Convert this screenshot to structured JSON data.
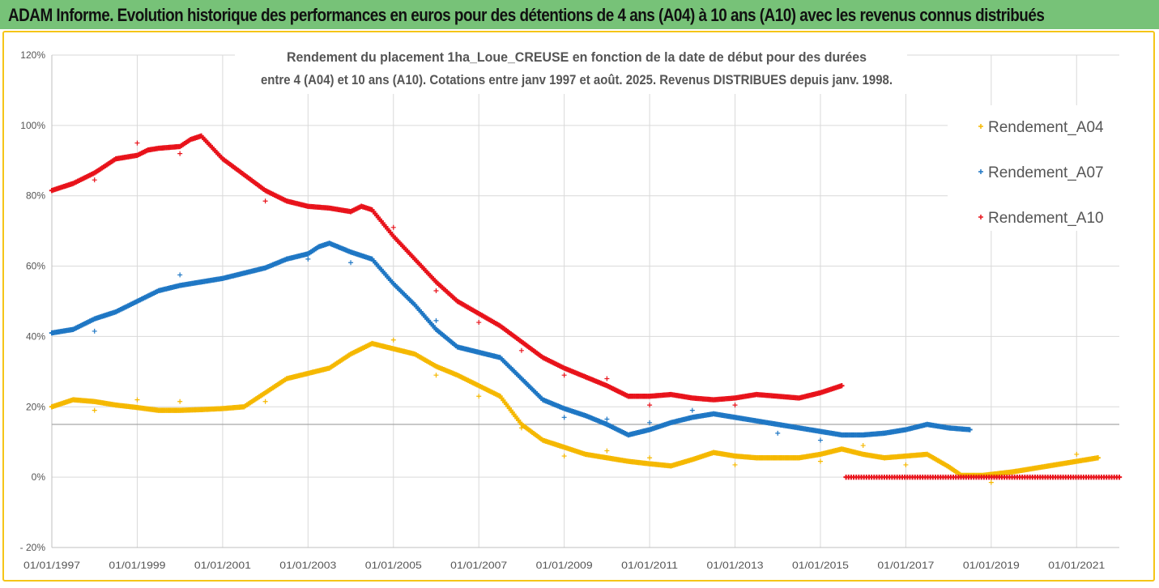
{
  "banner": {
    "title": "ADAM Informe. Evolution historique des performances en euros pour des détentions de 4 ans (A04) à 10 ans (A10) avec les revenus connus distribués",
    "color": "#77c278"
  },
  "chart_data": {
    "type": "scatter",
    "title_line1": "Rendement du placement 1ha_Loue_CREUSE en fonction de la date de début pour des durées",
    "title_line2": "entre 4 (A04) et 10 ans (A10). Cotations entre janv 1997 et août. 2025. Revenus DISTRIBUES depuis janv. 1998.",
    "y_ticks": [
      "120%",
      "100%",
      "80%",
      "60%",
      "40%",
      "20%",
      "0%",
      "- 20%"
    ],
    "y_tick_values": [
      120,
      100,
      80,
      60,
      40,
      20,
      0,
      -20
    ],
    "x_ticks": [
      "01/01/1997",
      "01/01/1999",
      "01/01/2001",
      "01/01/2003",
      "01/01/2005",
      "01/01/2007",
      "01/01/2009",
      "01/01/2011",
      "01/01/2013",
      "01/01/2015",
      "01/01/2017",
      "01/01/2019",
      "01/01/2021"
    ],
    "x_tick_years": [
      1997,
      1999,
      2001,
      2003,
      2005,
      2007,
      2009,
      2011,
      2013,
      2015,
      2017,
      2019,
      2021
    ],
    "xlim": [
      1997,
      2022
    ],
    "ylim": [
      -20,
      120
    ],
    "reference_line_y": 15,
    "legend_position": "right",
    "grid": true,
    "series": [
      {
        "name": "Rendement_A04",
        "color": "#f5b800",
        "points": [
          [
            1997.0,
            20
          ],
          [
            1997.25,
            21
          ],
          [
            1997.5,
            22
          ],
          [
            1998,
            21.5
          ],
          [
            1998.5,
            20.5
          ],
          [
            1999,
            19.8
          ],
          [
            1999.5,
            19
          ],
          [
            2000,
            19
          ],
          [
            2000.5,
            19.2
          ],
          [
            2001,
            19.5
          ],
          [
            2001.5,
            20
          ],
          [
            2002,
            24
          ],
          [
            2002.5,
            28
          ],
          [
            2003,
            29.5
          ],
          [
            2003.5,
            31
          ],
          [
            2004,
            35
          ],
          [
            2004.5,
            38
          ],
          [
            2005,
            36.5
          ],
          [
            2005.5,
            35
          ],
          [
            2006,
            31.5
          ],
          [
            2006.5,
            29
          ],
          [
            2007,
            26
          ],
          [
            2007.5,
            23
          ],
          [
            2008,
            15
          ],
          [
            2008.5,
            10.5
          ],
          [
            2009,
            8.5
          ],
          [
            2009.5,
            6.5
          ],
          [
            2010,
            5.5
          ],
          [
            2010.5,
            4.5
          ],
          [
            2011,
            3.8
          ],
          [
            2011.5,
            3.2
          ],
          [
            2012,
            5
          ],
          [
            2012.5,
            7
          ],
          [
            2013,
            6
          ],
          [
            2013.5,
            5.5
          ],
          [
            2014,
            5.5
          ],
          [
            2014.5,
            5.5
          ],
          [
            2015,
            6.5
          ],
          [
            2015.5,
            8
          ],
          [
            2016,
            6.5
          ],
          [
            2016.5,
            5.5
          ],
          [
            2017,
            6
          ],
          [
            2017.5,
            6.5
          ],
          [
            2018,
            3
          ],
          [
            2018.3,
            0.5
          ],
          [
            2018.8,
            0.5
          ],
          [
            2019.5,
            1.5
          ],
          [
            2020,
            2.5
          ],
          [
            2020.5,
            3.5
          ],
          [
            2021,
            4.5
          ],
          [
            2021.5,
            5.5
          ]
        ],
        "outliers": [
          [
            1998,
            19
          ],
          [
            1999,
            22
          ],
          [
            2000,
            21.5
          ],
          [
            2002,
            21.5
          ],
          [
            2005,
            39
          ],
          [
            2006,
            29
          ],
          [
            2007,
            23
          ],
          [
            2008,
            14
          ],
          [
            2009,
            6
          ],
          [
            2010,
            7.5
          ],
          [
            2011,
            5.5
          ],
          [
            2013,
            3.5
          ],
          [
            2015,
            4.5
          ],
          [
            2016,
            9
          ],
          [
            2017,
            3.5
          ],
          [
            2019,
            -1.5
          ],
          [
            2021,
            6.5
          ]
        ]
      },
      {
        "name": "Rendement_A07",
        "color": "#1f77c4",
        "points": [
          [
            1997.0,
            41
          ],
          [
            1997.5,
            42
          ],
          [
            1998,
            45
          ],
          [
            1998.5,
            47
          ],
          [
            1999,
            50
          ],
          [
            1999.5,
            53
          ],
          [
            2000,
            54.5
          ],
          [
            2000.5,
            55.5
          ],
          [
            2001,
            56.5
          ],
          [
            2001.5,
            58
          ],
          [
            2002,
            59.5
          ],
          [
            2002.5,
            62
          ],
          [
            2003,
            63.5
          ],
          [
            2003.25,
            65.5
          ],
          [
            2003.5,
            66.5
          ],
          [
            2004,
            64
          ],
          [
            2004.5,
            62
          ],
          [
            2005,
            55
          ],
          [
            2005.5,
            49
          ],
          [
            2006,
            42
          ],
          [
            2006.5,
            37
          ],
          [
            2007,
            35.5
          ],
          [
            2007.5,
            34
          ],
          [
            2008,
            28
          ],
          [
            2008.5,
            22
          ],
          [
            2009,
            19.5
          ],
          [
            2009.5,
            17.5
          ],
          [
            2010,
            15
          ],
          [
            2010.5,
            12
          ],
          [
            2011,
            13.5
          ],
          [
            2011.5,
            15.5
          ],
          [
            2012,
            17
          ],
          [
            2012.5,
            18
          ],
          [
            2013,
            17
          ],
          [
            2013.5,
            16
          ],
          [
            2014,
            15
          ],
          [
            2014.5,
            14
          ],
          [
            2015,
            13
          ],
          [
            2015.5,
            12
          ],
          [
            2016,
            12
          ],
          [
            2016.5,
            12.5
          ],
          [
            2017,
            13.5
          ],
          [
            2017.5,
            15
          ],
          [
            2018,
            14
          ],
          [
            2018.5,
            13.5
          ]
        ],
        "outliers": [
          [
            1998,
            41.5
          ],
          [
            2000,
            57.5
          ],
          [
            2003,
            62
          ],
          [
            2004,
            61
          ],
          [
            2006,
            44.5
          ],
          [
            2009,
            17
          ],
          [
            2010,
            16.5
          ],
          [
            2011,
            15.5
          ],
          [
            2012,
            19
          ],
          [
            2014,
            12.5
          ],
          [
            2015,
            10.5
          ]
        ]
      },
      {
        "name": "Rendement_A10",
        "color": "#e8131b",
        "points": [
          [
            1997.0,
            81.5
          ],
          [
            1997.5,
            83.5
          ],
          [
            1998,
            86.5
          ],
          [
            1998.25,
            88.5
          ],
          [
            1998.5,
            90.5
          ],
          [
            1999,
            91.5
          ],
          [
            1999.25,
            93
          ],
          [
            1999.5,
            93.5
          ],
          [
            2000,
            94
          ],
          [
            2000.25,
            96
          ],
          [
            2000.5,
            97
          ],
          [
            2001,
            90.5
          ],
          [
            2001.5,
            86
          ],
          [
            2002,
            81.5
          ],
          [
            2002.5,
            78.5
          ],
          [
            2003,
            77
          ],
          [
            2003.5,
            76.5
          ],
          [
            2004,
            75.5
          ],
          [
            2004.25,
            77
          ],
          [
            2004.5,
            76
          ],
          [
            2005,
            68.5
          ],
          [
            2005.5,
            62
          ],
          [
            2006,
            55.5
          ],
          [
            2006.5,
            50
          ],
          [
            2007,
            46.5
          ],
          [
            2007.5,
            43
          ],
          [
            2008,
            38.5
          ],
          [
            2008.5,
            34
          ],
          [
            2009,
            31
          ],
          [
            2009.5,
            28.5
          ],
          [
            2010,
            26
          ],
          [
            2010.5,
            23
          ],
          [
            2011,
            23
          ],
          [
            2011.5,
            23.5
          ],
          [
            2012,
            22.5
          ],
          [
            2012.5,
            22
          ],
          [
            2013,
            22.5
          ],
          [
            2013.5,
            23.5
          ],
          [
            2014,
            23
          ],
          [
            2014.5,
            22.5
          ],
          [
            2015,
            24
          ],
          [
            2015.5,
            26
          ]
        ],
        "flat": [
          [
            2015.6,
            0
          ],
          [
            2022,
            0
          ]
        ],
        "outliers": [
          [
            1998,
            84.5
          ],
          [
            1999,
            95
          ],
          [
            2000,
            92
          ],
          [
            2002,
            78.5
          ],
          [
            2005,
            71
          ],
          [
            2006,
            53
          ],
          [
            2007,
            44
          ],
          [
            2008,
            36
          ],
          [
            2009,
            29
          ],
          [
            2010,
            28
          ],
          [
            2011,
            20.5
          ],
          [
            2013,
            20.5
          ]
        ]
      }
    ]
  }
}
